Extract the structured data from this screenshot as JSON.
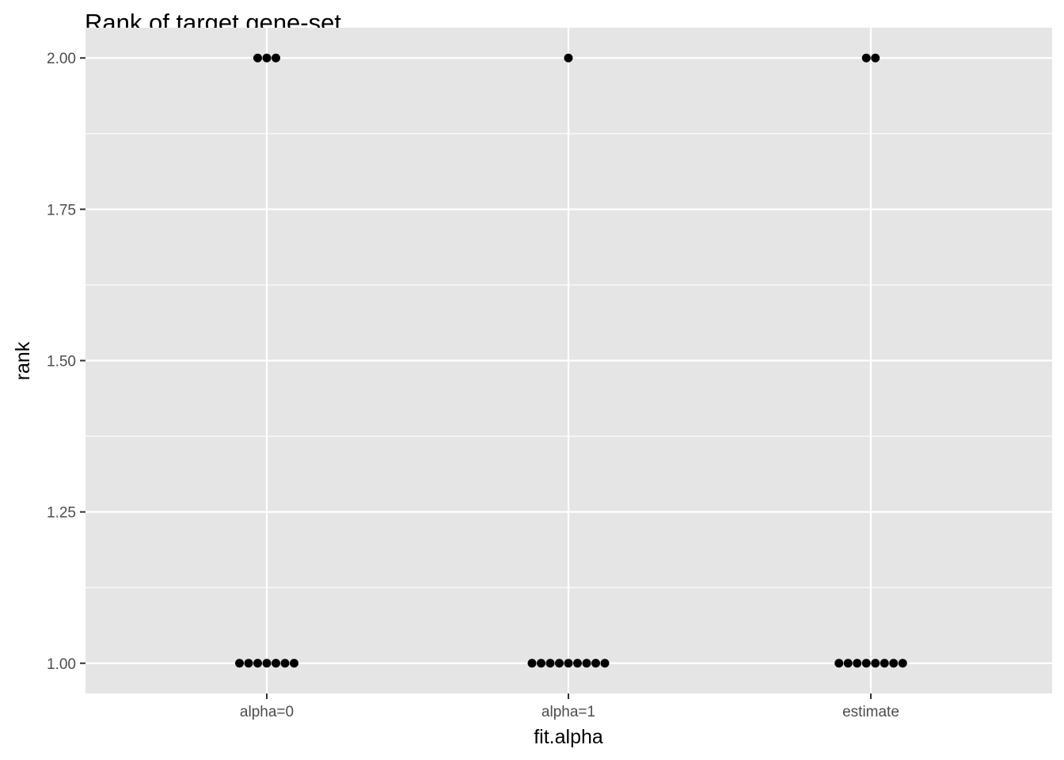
{
  "chart_data": {
    "type": "scatter",
    "title": "Rank of target gene-set",
    "xlabel": "fit.alpha",
    "ylabel": "rank",
    "categories": [
      "alpha=0",
      "alpha=1",
      "estimate"
    ],
    "ylim": [
      0.95,
      2.05
    ],
    "y_ticks": [
      1.0,
      1.25,
      1.5,
      1.75,
      2.0
    ],
    "y_tick_labels": [
      "1.00",
      "1.25",
      "1.50",
      "1.75",
      "2.00"
    ],
    "grid": true,
    "legend": "none",
    "series": [
      {
        "points": [
          {
            "x": "alpha=0",
            "y": 2,
            "count": 3
          },
          {
            "x": "alpha=0",
            "y": 1,
            "count": 7
          },
          {
            "x": "alpha=1",
            "y": 2,
            "count": 1
          },
          {
            "x": "alpha=1",
            "y": 1,
            "count": 9
          },
          {
            "x": "estimate",
            "y": 2,
            "count": 2
          },
          {
            "x": "estimate",
            "y": 1,
            "count": 8
          }
        ]
      }
    ],
    "colors": {
      "panel": "#e5e5e5",
      "grid": "#ffffff",
      "point": "#000000",
      "tick": "#333333"
    }
  }
}
